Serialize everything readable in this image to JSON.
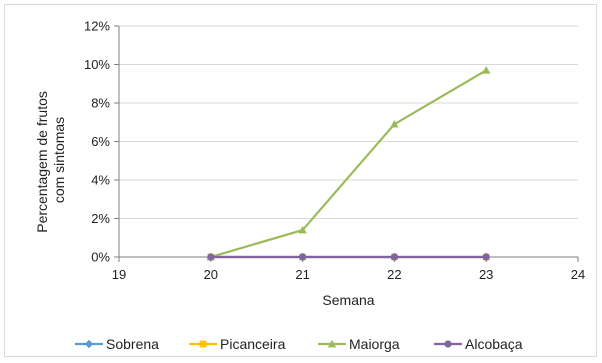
{
  "chart_data": {
    "type": "line",
    "title": "",
    "xlabel": "Semana",
    "ylabel_lines": [
      "Percentagem de frutos",
      "com sintomas"
    ],
    "x_ticks": [
      "19",
      "20",
      "21",
      "22",
      "23",
      "24"
    ],
    "y_ticks": [
      "0%",
      "2%",
      "4%",
      "6%",
      "8%",
      "10%",
      "12%"
    ],
    "xlim": [
      19,
      24
    ],
    "ylim": [
      0,
      12
    ],
    "grid": "horizontal",
    "legend_position": "bottom",
    "series": [
      {
        "name": "Sobrena",
        "color": "#5b9bd5",
        "marker": "diamond",
        "x": [
          20,
          21,
          22,
          23
        ],
        "y": [
          0,
          0,
          0,
          0
        ]
      },
      {
        "name": "Picanceira",
        "color": "#ffc000",
        "marker": "square",
        "x": [
          20,
          21,
          22,
          23
        ],
        "y": [
          0,
          0,
          0,
          0
        ]
      },
      {
        "name": "Maiorga",
        "color": "#9bbb59",
        "marker": "triangle",
        "x": [
          20,
          21,
          22,
          23
        ],
        "y": [
          0,
          1.4,
          6.9,
          9.7
        ]
      },
      {
        "name": "Alcobaça",
        "color": "#8064a2",
        "marker": "circle",
        "x": [
          20,
          21,
          22,
          23
        ],
        "y": [
          0,
          0,
          0,
          0
        ]
      }
    ]
  }
}
